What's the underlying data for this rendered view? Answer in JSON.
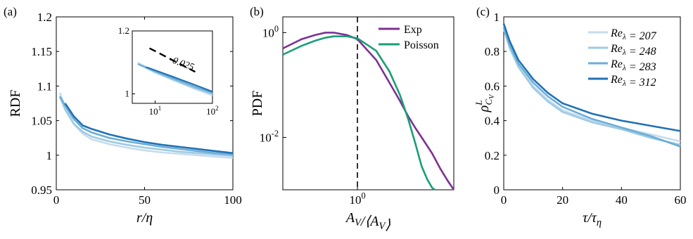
{
  "chart_data": [
    {
      "type": "line",
      "panel_label": "(a)",
      "xlabel": "r/η",
      "ylabel": "RDF",
      "xlim": [
        0,
        100
      ],
      "ylim": [
        0.95,
        1.2
      ],
      "xticks": [
        0,
        50,
        100
      ],
      "xtick_labels": [
        "0",
        "50",
        "100"
      ],
      "yticks": [
        0.95,
        1,
        1.05,
        1.1,
        1.15,
        1.2
      ],
      "ytick_labels": [
        "0.95",
        "1",
        "1.05",
        "1.1",
        "1.15",
        "1.2"
      ],
      "grid": false,
      "series": [
        {
          "color": "#c6dbef",
          "x": [
            2,
            5,
            10,
            15,
            20,
            30,
            40,
            50,
            60,
            70,
            80,
            90,
            100
          ],
          "y": [
            1.09,
            1.07,
            1.045,
            1.031,
            1.023,
            1.016,
            1.011,
            1.007,
            1.004,
            1.002,
            1.0,
            0.998,
            0.996
          ]
        },
        {
          "color": "#9ecae1",
          "x": [
            2,
            5,
            10,
            15,
            20,
            30,
            40,
            50,
            60,
            70,
            80,
            90,
            100
          ],
          "y": [
            1.085,
            1.066,
            1.045,
            1.034,
            1.027,
            1.02,
            1.015,
            1.011,
            1.008,
            1.005,
            1.003,
            1.001,
            0.999
          ]
        },
        {
          "color": "#6baed6",
          "x": [
            2,
            5,
            10,
            15,
            20,
            30,
            40,
            50,
            60,
            70,
            80,
            90,
            100
          ],
          "y": [
            1.085,
            1.072,
            1.052,
            1.039,
            1.033,
            1.025,
            1.02,
            1.016,
            1.012,
            1.009,
            1.006,
            1.003,
            1.001
          ]
        },
        {
          "color": "#2171b5",
          "x": [
            5,
            10,
            15,
            20,
            30,
            40,
            50,
            60,
            70,
            80,
            90,
            100
          ],
          "y": [
            1.075,
            1.056,
            1.043,
            1.038,
            1.03,
            1.024,
            1.019,
            1.015,
            1.012,
            1.009,
            1.006,
            1.003
          ]
        }
      ],
      "inset": {
        "xscale": "log",
        "xlim": [
          4,
          100
        ],
        "ylim": [
          0.97,
          1.2
        ],
        "xtick_labels": [
          "10^1",
          "10^2"
        ],
        "ytick_labels": [
          "1",
          "1.2"
        ],
        "annotation": "-0.025",
        "series": [
          {
            "color": "#c6dbef",
            "x": [
              5,
              10,
              20,
              50,
              100
            ],
            "y": [
              1.1,
              1.07,
              1.045,
              1.015,
              0.995
            ]
          },
          {
            "color": "#9ecae1",
            "x": [
              5,
              10,
              20,
              50,
              100
            ],
            "y": [
              1.095,
              1.068,
              1.045,
              1.018,
              1.0
            ]
          },
          {
            "color": "#6baed6",
            "x": [
              5,
              10,
              20,
              50,
              100
            ],
            "y": [
              1.095,
              1.072,
              1.05,
              1.022,
              1.003
            ]
          },
          {
            "color": "#2171b5",
            "x": [
              7,
              10,
              20,
              50,
              100
            ],
            "y": [
              1.085,
              1.075,
              1.055,
              1.028,
              1.007
            ]
          }
        ]
      }
    },
    {
      "type": "line",
      "panel_label": "(b)",
      "xlabel": "A_V/⟨A_V⟩",
      "ylabel": "PDF",
      "xscale": "log",
      "yscale": "log",
      "xlim": [
        0.2,
        8
      ],
      "ylim": [
        0.001,
        2
      ],
      "xtick_labels": [
        "10^0"
      ],
      "ytick_labels": [
        "10^0",
        "10^-2"
      ],
      "vline": 1.0,
      "legend_position": "top-right",
      "series": [
        {
          "name": "Exp",
          "color": "#7b3294",
          "x": [
            0.2,
            0.3,
            0.4,
            0.5,
            0.6,
            0.8,
            1.0,
            1.5,
            2.0,
            2.5,
            3.0,
            3.5,
            4.0,
            5.0,
            6.0,
            7.0,
            8.0
          ],
          "y": [
            0.5,
            0.75,
            0.9,
            1.0,
            1.0,
            0.9,
            0.75,
            0.3,
            0.11,
            0.05,
            0.025,
            0.015,
            0.01,
            0.005,
            0.0025,
            0.0015,
            0.001
          ]
        },
        {
          "name": "Poisson",
          "color": "#1a9e77",
          "x": [
            0.2,
            0.3,
            0.4,
            0.5,
            0.6,
            0.8,
            1.0,
            1.5,
            2.0,
            2.5,
            3.0,
            3.5,
            4.0,
            4.5,
            5.0,
            5.3
          ],
          "y": [
            0.38,
            0.56,
            0.7,
            0.8,
            0.85,
            0.85,
            0.78,
            0.45,
            0.18,
            0.065,
            0.022,
            0.0075,
            0.0028,
            0.0016,
            0.0011,
            0.001
          ]
        }
      ]
    },
    {
      "type": "line",
      "panel_label": "(c)",
      "xlabel": "τ/τ_η",
      "ylabel": "ρ^L_{C_V}",
      "xlim": [
        0,
        60
      ],
      "ylim": [
        0,
        1
      ],
      "xticks": [
        0,
        20,
        40,
        60
      ],
      "xtick_labels": [
        "0",
        "20",
        "40",
        "60"
      ],
      "yticks": [
        0,
        0.2,
        0.4,
        0.6,
        0.8,
        1
      ],
      "ytick_labels": [
        "0",
        "0.2",
        "0.4",
        "0.6",
        "0.8",
        "1"
      ],
      "legend_position": "top-right",
      "series": [
        {
          "name": "Re_λ = 207",
          "color": "#c6dbef",
          "x": [
            0,
            2,
            5,
            10,
            15,
            20,
            30,
            40,
            50,
            60
          ],
          "y": [
            0.95,
            0.83,
            0.72,
            0.6,
            0.52,
            0.46,
            0.4,
            0.36,
            0.32,
            0.28
          ]
        },
        {
          "name": "Re_λ = 248",
          "color": "#9ecae1",
          "x": [
            0,
            2,
            5,
            10,
            15,
            20,
            30,
            40,
            50,
            60
          ],
          "y": [
            0.93,
            0.82,
            0.71,
            0.59,
            0.51,
            0.45,
            0.39,
            0.35,
            0.3,
            0.26
          ]
        },
        {
          "name": "Re_λ = 283",
          "color": "#6baed6",
          "x": [
            0,
            2,
            5,
            10,
            15,
            20,
            30,
            40,
            50,
            60
          ],
          "y": [
            0.94,
            0.84,
            0.73,
            0.62,
            0.54,
            0.48,
            0.41,
            0.36,
            0.31,
            0.25
          ]
        },
        {
          "name": "Re_λ = 312",
          "color": "#2171b5",
          "x": [
            0,
            2,
            5,
            10,
            15,
            20,
            30,
            40,
            50,
            60
          ],
          "y": [
            0.96,
            0.86,
            0.75,
            0.64,
            0.56,
            0.5,
            0.44,
            0.4,
            0.37,
            0.34
          ]
        }
      ]
    }
  ]
}
